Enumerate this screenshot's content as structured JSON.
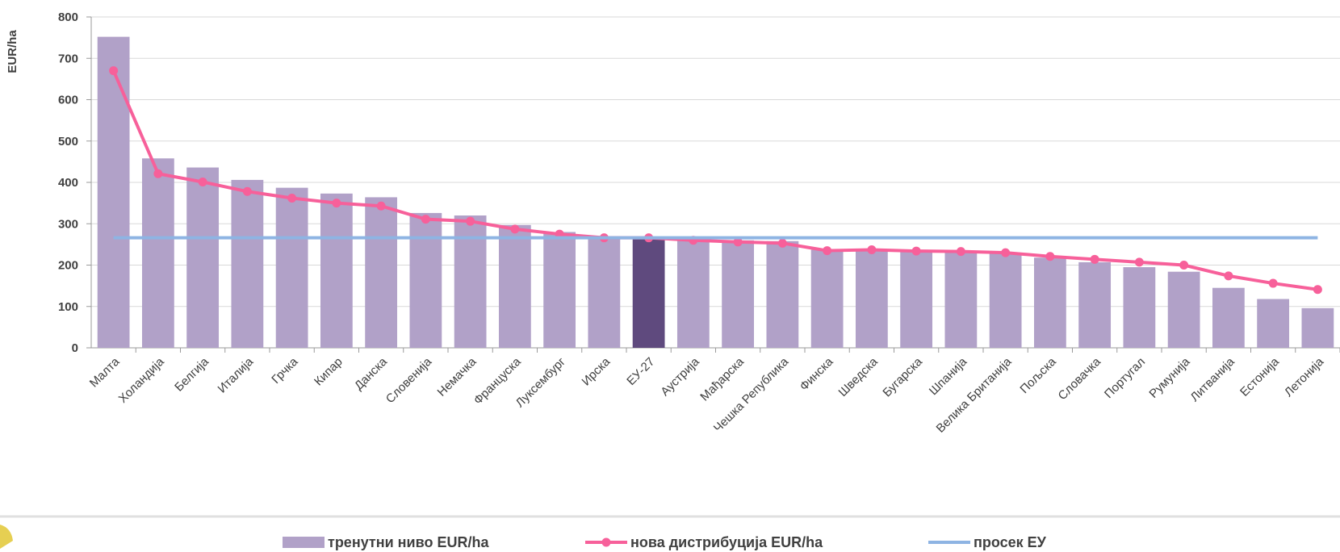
{
  "chart_data": {
    "type": "bar",
    "y_label": "EUR/ha",
    "categories": [
      "Малта",
      "Холандија",
      "Белгија",
      "Италија",
      "Грчка",
      "Кипар",
      "Данска",
      "Словенија",
      "Немачка",
      "Француска",
      "Луксембург",
      "Ирска",
      "ЕУ-27",
      "Аустрија",
      "Мађарска",
      "Чешка Република",
      "Финска",
      "Шведска",
      "Бугарска",
      "Шпанија",
      "Велика Британија",
      "Пољска",
      "Словачка",
      "Португал",
      "Румунија",
      "Литванија",
      "Естонија",
      "Летонија"
    ],
    "series": [
      {
        "name": "тренутни ниво EUR/ha",
        "type": "bar",
        "color": "#b1a1c8",
        "colors": [
          "#b1a1c8",
          "#b1a1c8",
          "#b1a1c8",
          "#b1a1c8",
          "#b1a1c8",
          "#b1a1c8",
          "#b1a1c8",
          "#b1a1c8",
          "#b1a1c8",
          "#b1a1c8",
          "#b1a1c8",
          "#b1a1c8",
          "#5f4a7e",
          "#b1a1c8",
          "#b1a1c8",
          "#b1a1c8",
          "#b1a1c8",
          "#b1a1c8",
          "#b1a1c8",
          "#b1a1c8",
          "#b1a1c8",
          "#b1a1c8",
          "#b1a1c8",
          "#b1a1c8",
          "#b1a1c8",
          "#b1a1c8",
          "#b1a1c8",
          "#b1a1c8"
        ],
        "values": [
          752,
          458,
          436,
          406,
          387,
          373,
          364,
          326,
          320,
          297,
          280,
          270,
          266,
          263,
          260,
          258,
          237,
          237,
          236,
          235,
          228,
          218,
          207,
          195,
          184,
          145,
          118,
          96
        ]
      },
      {
        "name": "нова дистрибуција EUR/ha",
        "type": "line",
        "color": "#f7609a",
        "markers": true,
        "values": [
          670,
          421,
          401,
          378,
          362,
          350,
          343,
          311,
          306,
          287,
          275,
          266,
          266,
          260,
          256,
          253,
          235,
          237,
          234,
          233,
          230,
          221,
          214,
          207,
          200,
          174,
          156,
          141
        ]
      },
      {
        "name": "просек ЕУ",
        "type": "line",
        "color": "#8eb4e3",
        "markers": false,
        "values": [
          266,
          266,
          266,
          266,
          266,
          266,
          266,
          266,
          266,
          266,
          266,
          266,
          266,
          266,
          266,
          266,
          266,
          266,
          266,
          266,
          266,
          266,
          266,
          266,
          266,
          266,
          266,
          266
        ]
      }
    ],
    "ylim": [
      0,
      800
    ],
    "yticks": [
      0,
      100,
      200,
      300,
      400,
      500,
      600,
      700,
      800
    ],
    "grid": true,
    "legend": "bottom"
  }
}
